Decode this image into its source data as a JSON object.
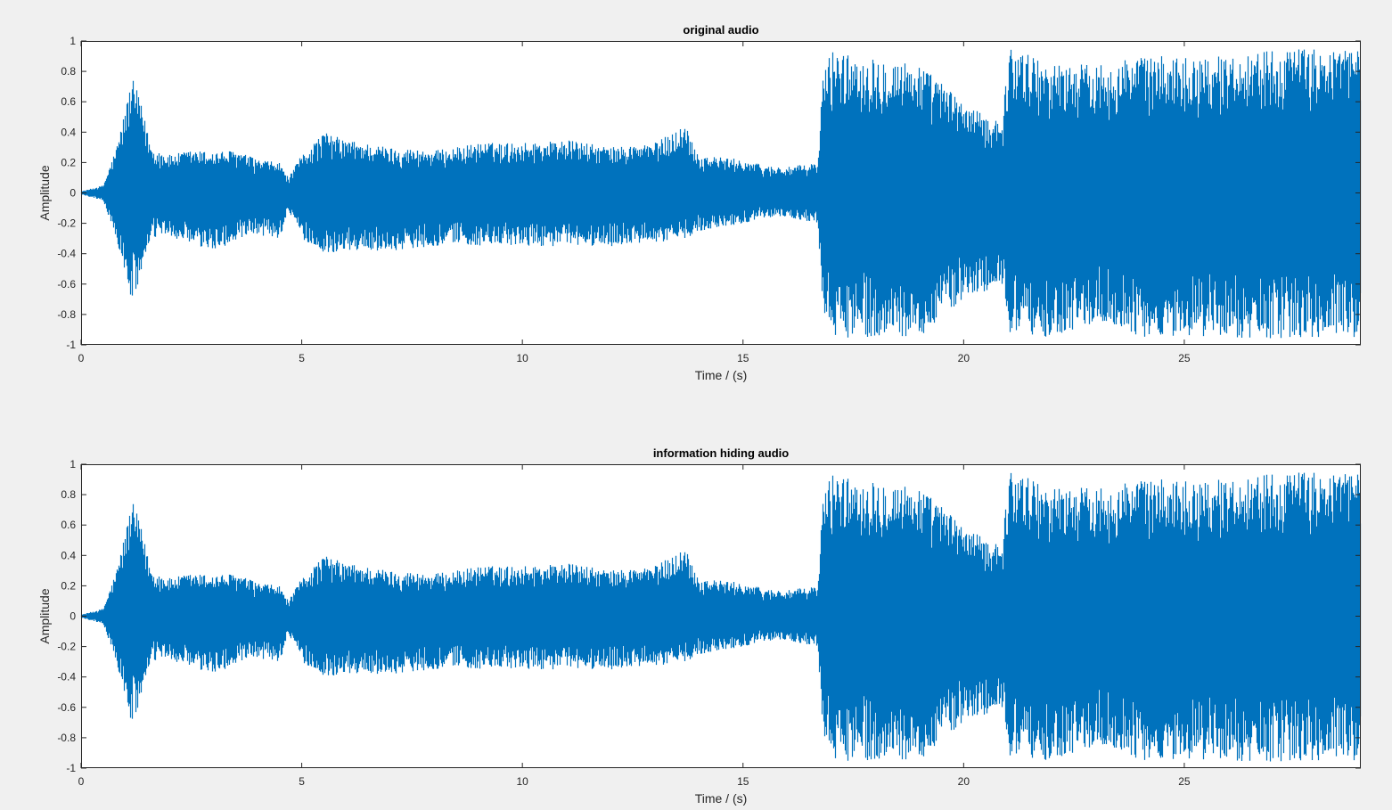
{
  "chart_data": [
    {
      "type": "line",
      "title": "original audio",
      "xlabel": "Time / (s)",
      "ylabel": "Amplitude",
      "xlim": [
        0,
        29
      ],
      "ylim": [
        -1,
        1
      ],
      "xticks": [
        0,
        5,
        10,
        15,
        20,
        25
      ],
      "yticks": [
        -1,
        -0.8,
        -0.6,
        -0.4,
        -0.2,
        0,
        0.2,
        0.4,
        0.6,
        0.8,
        1
      ],
      "grid": false,
      "color": "#0072BD",
      "envelope": {
        "t": [
          0,
          0.5,
          0.8,
          1.0,
          1.15,
          1.3,
          1.6,
          2.0,
          2.5,
          3.0,
          3.5,
          4.0,
          4.5,
          4.7,
          5.0,
          5.5,
          6.0,
          7.0,
          8.0,
          8.5,
          9.0,
          10.0,
          11.0,
          12.0,
          13.0,
          13.7,
          14.0,
          15.0,
          15.5,
          16.0,
          16.7,
          16.8,
          17.0,
          17.5,
          18.0,
          19.0,
          20.0,
          20.5,
          20.9,
          21.0,
          22.0,
          23.0,
          24.0,
          25.0,
          26.0,
          27.0,
          28.0,
          29.0
        ],
        "pos": [
          0.01,
          0.05,
          0.3,
          0.55,
          0.76,
          0.65,
          0.3,
          0.25,
          0.28,
          0.27,
          0.28,
          0.22,
          0.2,
          0.1,
          0.25,
          0.4,
          0.35,
          0.3,
          0.28,
          0.3,
          0.33,
          0.33,
          0.35,
          0.3,
          0.33,
          0.45,
          0.25,
          0.22,
          0.18,
          0.17,
          0.2,
          0.75,
          0.95,
          0.9,
          0.9,
          0.85,
          0.6,
          0.5,
          0.5,
          0.97,
          0.85,
          0.85,
          0.9,
          0.9,
          0.9,
          0.95,
          0.95,
          0.95
        ],
        "neg": [
          0.01,
          0.05,
          0.3,
          0.55,
          0.72,
          0.6,
          0.3,
          0.28,
          0.35,
          0.38,
          0.32,
          0.28,
          0.3,
          0.12,
          0.3,
          0.4,
          0.38,
          0.38,
          0.35,
          0.33,
          0.35,
          0.35,
          0.35,
          0.35,
          0.33,
          0.3,
          0.25,
          0.2,
          0.16,
          0.16,
          0.2,
          0.75,
          0.97,
          0.95,
          0.95,
          0.95,
          0.7,
          0.65,
          0.6,
          0.95,
          0.95,
          0.85,
          0.95,
          0.95,
          0.95,
          0.97,
          0.95,
          0.97
        ]
      }
    },
    {
      "type": "line",
      "title": "information hiding audio",
      "xlabel": "Time / (s)",
      "ylabel": "Amplitude",
      "xlim": [
        0,
        29
      ],
      "ylim": [
        -1,
        1
      ],
      "xticks": [
        0,
        5,
        10,
        15,
        20,
        25
      ],
      "yticks": [
        -1,
        -0.8,
        -0.6,
        -0.4,
        -0.2,
        0,
        0.2,
        0.4,
        0.6,
        0.8,
        1
      ],
      "grid": false,
      "color": "#0072BD",
      "envelope": {
        "t": [
          0,
          0.5,
          0.8,
          1.0,
          1.15,
          1.3,
          1.6,
          2.0,
          2.5,
          3.0,
          3.5,
          4.0,
          4.5,
          4.7,
          5.0,
          5.5,
          6.0,
          7.0,
          8.0,
          8.5,
          9.0,
          10.0,
          11.0,
          12.0,
          13.0,
          13.7,
          14.0,
          15.0,
          15.5,
          16.0,
          16.7,
          16.8,
          17.0,
          17.5,
          18.0,
          19.0,
          20.0,
          20.5,
          20.9,
          21.0,
          22.0,
          23.0,
          24.0,
          25.0,
          26.0,
          27.0,
          28.0,
          29.0
        ],
        "pos": [
          0.01,
          0.05,
          0.3,
          0.55,
          0.76,
          0.65,
          0.3,
          0.25,
          0.28,
          0.27,
          0.28,
          0.22,
          0.2,
          0.1,
          0.25,
          0.4,
          0.35,
          0.3,
          0.28,
          0.3,
          0.33,
          0.33,
          0.35,
          0.3,
          0.33,
          0.45,
          0.25,
          0.22,
          0.18,
          0.17,
          0.2,
          0.75,
          0.95,
          0.9,
          0.9,
          0.85,
          0.6,
          0.5,
          0.5,
          0.97,
          0.85,
          0.85,
          0.9,
          0.9,
          0.9,
          0.95,
          0.95,
          0.95
        ],
        "neg": [
          0.01,
          0.05,
          0.3,
          0.55,
          0.72,
          0.6,
          0.3,
          0.28,
          0.35,
          0.38,
          0.32,
          0.28,
          0.3,
          0.12,
          0.3,
          0.4,
          0.38,
          0.38,
          0.35,
          0.33,
          0.35,
          0.35,
          0.35,
          0.35,
          0.33,
          0.3,
          0.25,
          0.2,
          0.16,
          0.16,
          0.2,
          0.75,
          0.97,
          0.95,
          0.95,
          0.95,
          0.7,
          0.65,
          0.6,
          0.95,
          0.95,
          0.85,
          0.95,
          0.95,
          0.95,
          0.97,
          0.95,
          0.97
        ]
      }
    }
  ]
}
